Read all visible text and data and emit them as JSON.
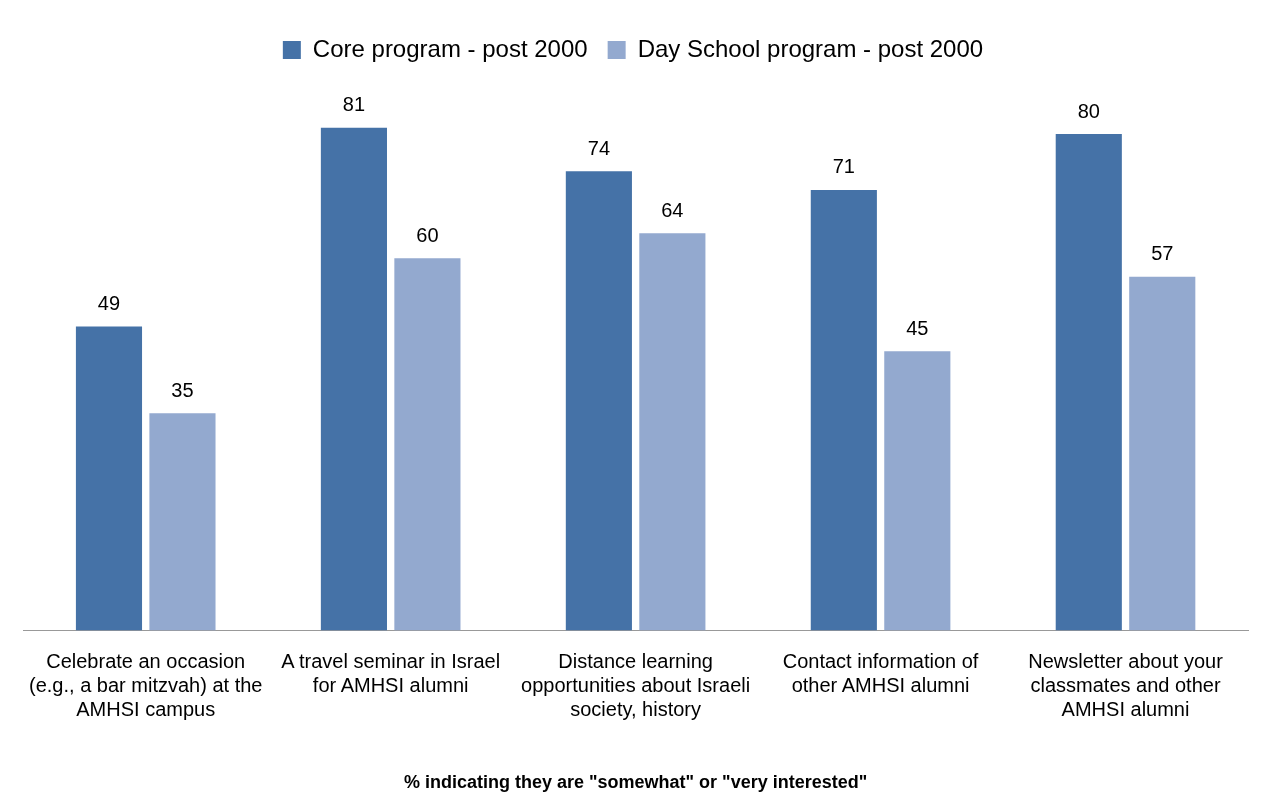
{
  "chart_data": {
    "type": "bar",
    "xlabel": "% indicating they are \"somewhat\" or \"very interested\"",
    "categories": [
      "Celebrate an occasion (e.g., a bar mitzvah) at the AMHSI campus",
      "A travel seminar in Israel for AMHSI alumni",
      "Distance learning opportunities about Israeli society, history",
      "Contact information of other AMHSI alumni",
      "Newsletter about your classmates and other AMHSI alumni"
    ],
    "series": [
      {
        "name": "Core program - post 2000",
        "color": "#4572a7",
        "values": [
          49,
          81,
          74,
          71,
          80
        ]
      },
      {
        "name": "Day School program - post 2000",
        "color": "#93a9cf",
        "values": [
          35,
          60,
          64,
          45,
          57
        ]
      }
    ],
    "data_labels": true,
    "legend": "top"
  }
}
